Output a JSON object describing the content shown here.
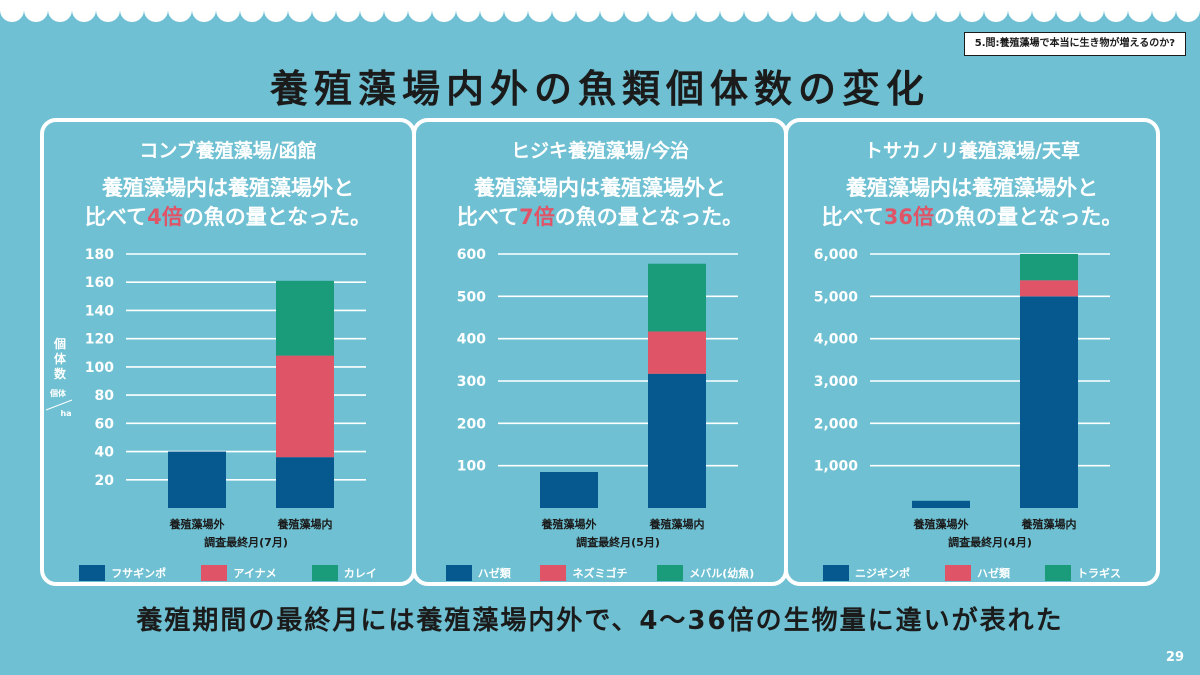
{
  "section_tag": "5.問:養殖藻場で本当に生き物が増えるのか?",
  "title": "養殖藻場内外の魚類個体数の変化",
  "footer": "養殖期間の最終月には養殖藻場内外で、4〜36倍の生物量に違いが表れた",
  "page_number": "29",
  "y_unit_label": "個体数",
  "y_unit_fraction": [
    "個体",
    "ha"
  ],
  "chart_data": [
    {
      "type": "bar",
      "stacked": true,
      "title": "コンブ養殖藻場/函館",
      "caption_line1": "養殖藻場内は養殖藻場外と",
      "caption_pre": "比べて",
      "caption_mult": "4倍",
      "caption_post": "の魚の量となった。",
      "categories": [
        "養殖藻場外",
        "養殖藻場内"
      ],
      "xlabel": "調査最終月(7月)",
      "ylabel": "個体数 個体/ha",
      "ylim": [
        0,
        180
      ],
      "yticks": [
        20,
        40,
        60,
        80,
        100,
        120,
        140,
        160,
        180
      ],
      "ytick_labels": [
        "20",
        "40",
        "60",
        "80",
        "100",
        "120",
        "140",
        "160",
        "180"
      ],
      "legend": "bottom",
      "series": [
        {
          "name": "フサギンポ",
          "color": "#05598f",
          "values": [
            40,
            36
          ]
        },
        {
          "name": "アイナメ",
          "color": "#e05468",
          "values": [
            0,
            72
          ]
        },
        {
          "name": "カレイ",
          "color": "#1a9c7a",
          "values": [
            0,
            53
          ]
        }
      ]
    },
    {
      "type": "bar",
      "stacked": true,
      "title": "ヒジキ養殖藻場/今治",
      "caption_line1": "養殖藻場内は養殖藻場外と",
      "caption_pre": "比べて",
      "caption_mult": "7倍",
      "caption_post": "の魚の量となった。",
      "categories": [
        "養殖藻場外",
        "養殖藻場内"
      ],
      "xlabel": "調査最終月(5月)",
      "ylim": [
        0,
        600
      ],
      "yticks": [
        100,
        200,
        300,
        400,
        500,
        600
      ],
      "ytick_labels": [
        "100",
        "200",
        "300",
        "400",
        "500",
        "600"
      ],
      "legend": "bottom",
      "series": [
        {
          "name": "ハゼ類",
          "color": "#05598f",
          "values": [
            85,
            317
          ]
        },
        {
          "name": "ネズミゴチ",
          "color": "#e05468",
          "values": [
            0,
            100
          ]
        },
        {
          "name": "メバル(幼魚)",
          "color": "#1a9c7a",
          "values": [
            0,
            160
          ]
        }
      ]
    },
    {
      "type": "bar",
      "stacked": true,
      "title": "トサカノリ養殖藻場/天草",
      "caption_line1": "養殖藻場内は養殖藻場外と",
      "caption_pre": "比べて",
      "caption_mult": "36倍",
      "caption_post": "の魚の量となった。",
      "categories": [
        "養殖藻場外",
        "養殖藻場内"
      ],
      "xlabel": "調査最終月(4月)",
      "ylim": [
        0,
        6000
      ],
      "yticks": [
        1000,
        2000,
        3000,
        4000,
        5000,
        6000
      ],
      "ytick_labels": [
        "1,000",
        "2,000",
        "3,000",
        "4,000",
        "5,000",
        "6,000"
      ],
      "legend": "bottom",
      "series": [
        {
          "name": "ニジギンポ",
          "color": "#05598f",
          "values": [
            170,
            5000
          ]
        },
        {
          "name": "ハゼ類",
          "color": "#e05468",
          "values": [
            0,
            380
          ]
        },
        {
          "name": "トラギス",
          "color": "#1a9c7a",
          "values": [
            0,
            620
          ]
        }
      ]
    }
  ]
}
